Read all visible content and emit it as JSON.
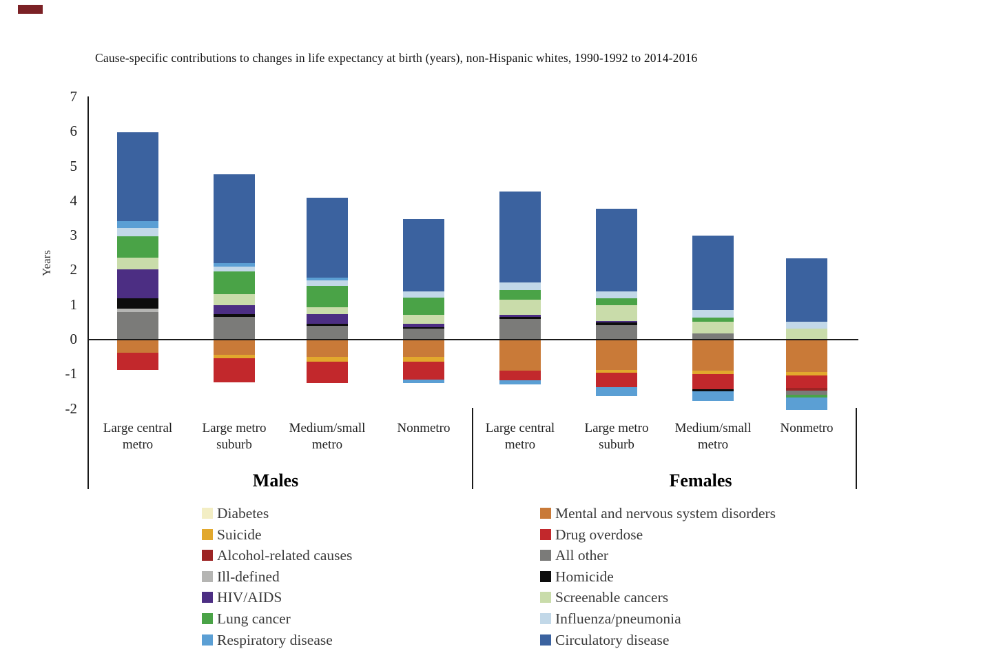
{
  "title": "Cause-specific contributions to changes in life expectancy at birth (years), non-Hispanic whites, 1990-1992 to 2014-2016",
  "chart_data": {
    "type": "bar",
    "subtype": "stacked-bar-with-negatives",
    "title": "Cause-specific contributions to changes in life expectancy at birth (years), non-Hispanic whites, 1990-1992 to 2014-2016",
    "xlabel": "",
    "ylabel": "Years",
    "ylim": [
      -2.3,
      7
    ],
    "yticks": [
      7,
      6,
      5,
      4,
      3,
      2,
      1,
      0,
      -1,
      -2
    ],
    "grid": false,
    "legend_position": "bottom, two columns",
    "groups": [
      {
        "label": "Males"
      },
      {
        "label": "Females"
      }
    ],
    "causes": {
      "diabetes": {
        "label": "Diabetes",
        "color": "#f3eec4"
      },
      "suicide": {
        "label": "Suicide",
        "color": "#e2a82d"
      },
      "alcohol": {
        "label": "Alcohol-related causes",
        "color": "#9c2424"
      },
      "ill_defined": {
        "label": "Ill-defined",
        "color": "#b5b5b3"
      },
      "hiv": {
        "label": "HIV/AIDS",
        "color": "#4c2e83"
      },
      "lung": {
        "label": "Lung cancer",
        "color": "#4aa347"
      },
      "respiratory": {
        "label": "Respiratory disease",
        "color": "#5b9fd4"
      },
      "mental": {
        "label": "Mental and nervous system disorders",
        "color": "#c97a38"
      },
      "overdose": {
        "label": "Drug overdose",
        "color": "#c2282c"
      },
      "all_other": {
        "label": "All other",
        "color": "#7b7b79"
      },
      "homicide": {
        "label": "Homicide",
        "color": "#0d0d0d"
      },
      "screenable": {
        "label": "Screenable cancers",
        "color": "#c9dcaa"
      },
      "influenza": {
        "label": "Influenza/pneumonia",
        "color": "#c2d8e8"
      },
      "circulatory": {
        "label": "Circulatory disease",
        "color": "#3b629f"
      }
    },
    "legend_columns": [
      [
        "diabetes",
        "suicide",
        "alcohol",
        "ill_defined",
        "hiv",
        "lung",
        "respiratory"
      ],
      [
        "mental",
        "overdose",
        "all_other",
        "homicide",
        "screenable",
        "influenza",
        "circulatory"
      ]
    ],
    "categories": [
      "Large central\nmetro",
      "Large metro\nsuburb",
      "Medium/small\nmetro",
      "Nonmetro",
      "Large central\nmetro",
      "Large metro\nsuburb",
      "Medium/small\nmetro",
      "Nonmetro"
    ],
    "bars": [
      {
        "group": "Males",
        "category": "Large central\nmetro",
        "pos": [
          [
            "all_other",
            0.8
          ],
          [
            "ill_defined",
            0.1
          ],
          [
            "homicide",
            0.3
          ],
          [
            "hiv",
            0.82
          ],
          [
            "screenable",
            0.34
          ],
          [
            "lung",
            0.63
          ],
          [
            "influenza",
            0.24
          ],
          [
            "respiratory",
            0.18
          ],
          [
            "circulatory",
            2.58
          ]
        ],
        "neg": [
          [
            "mental",
            -0.38
          ],
          [
            "overdose",
            -0.49
          ]
        ]
      },
      {
        "group": "Males",
        "category": "Large metro\nsuburb",
        "pos": [
          [
            "all_other",
            0.66
          ],
          [
            "homicide",
            0.07
          ],
          [
            "hiv",
            0.26
          ],
          [
            "screenable",
            0.33
          ],
          [
            "lung",
            0.65
          ],
          [
            "influenza",
            0.14
          ],
          [
            "respiratory",
            0.1
          ],
          [
            "circulatory",
            2.56
          ]
        ],
        "neg": [
          [
            "mental",
            -0.44
          ],
          [
            "suicide",
            -0.1
          ],
          [
            "overdose",
            -0.7
          ]
        ]
      },
      {
        "group": "Males",
        "category": "Medium/small\nmetro",
        "pos": [
          [
            "all_other",
            0.4
          ],
          [
            "homicide",
            0.06
          ],
          [
            "hiv",
            0.27
          ],
          [
            "screenable",
            0.21
          ],
          [
            "lung",
            0.61
          ],
          [
            "influenza",
            0.15
          ],
          [
            "respiratory",
            0.08
          ],
          [
            "circulatory",
            2.32
          ]
        ],
        "neg": [
          [
            "mental",
            -0.5
          ],
          [
            "suicide",
            -0.13
          ],
          [
            "overdose",
            -0.62
          ]
        ]
      },
      {
        "group": "Males",
        "category": "Nonmetro",
        "pos": [
          [
            "all_other",
            0.31
          ],
          [
            "homicide",
            0.05
          ],
          [
            "hiv",
            0.09
          ],
          [
            "screenable",
            0.27
          ],
          [
            "lung",
            0.5
          ],
          [
            "influenza",
            0.17
          ],
          [
            "circulatory",
            2.09
          ]
        ],
        "neg": [
          [
            "mental",
            -0.5
          ],
          [
            "suicide",
            -0.13
          ],
          [
            "overdose",
            -0.53
          ],
          [
            "respiratory",
            -0.09
          ]
        ]
      },
      {
        "group": "Females",
        "category": "Large central\nmetro",
        "pos": [
          [
            "all_other",
            0.59
          ],
          [
            "homicide",
            0.07
          ],
          [
            "hiv",
            0.06
          ],
          [
            "screenable",
            0.44
          ],
          [
            "lung",
            0.28
          ],
          [
            "influenza",
            0.22
          ],
          [
            "circulatory",
            2.61
          ]
        ],
        "neg": [
          [
            "mental",
            -0.89
          ],
          [
            "overdose",
            -0.28
          ],
          [
            "respiratory",
            -0.12
          ]
        ]
      },
      {
        "group": "Females",
        "category": "Large metro\nsuburb",
        "pos": [
          [
            "all_other",
            0.42
          ],
          [
            "homicide",
            0.07
          ],
          [
            "hiv",
            0.04
          ],
          [
            "screenable",
            0.46
          ],
          [
            "lung",
            0.2
          ],
          [
            "influenza",
            0.2
          ],
          [
            "circulatory",
            2.39
          ]
        ],
        "neg": [
          [
            "mental",
            -0.87
          ],
          [
            "suicide",
            -0.08
          ],
          [
            "overdose",
            -0.42
          ],
          [
            "respiratory",
            -0.27
          ]
        ]
      },
      {
        "group": "Females",
        "category": "Medium/small\nmetro",
        "pos": [
          [
            "all_other",
            0.18
          ],
          [
            "screenable",
            0.34
          ],
          [
            "lung",
            0.11
          ],
          [
            "influenza",
            0.22
          ],
          [
            "circulatory",
            2.16
          ]
        ],
        "neg": [
          [
            "mental",
            -0.9
          ],
          [
            "suicide",
            -0.1
          ],
          [
            "overdose",
            -0.43
          ],
          [
            "homicide",
            -0.07
          ],
          [
            "respiratory",
            -0.27
          ]
        ]
      },
      {
        "group": "Females",
        "category": "Nonmetro",
        "pos": [
          [
            "screenable",
            0.31
          ],
          [
            "influenza",
            0.2
          ],
          [
            "circulatory",
            1.84
          ]
        ],
        "neg": [
          [
            "mental",
            -0.93
          ],
          [
            "suicide",
            -0.11
          ],
          [
            "overdose",
            -0.35
          ],
          [
            "alcohol",
            -0.08
          ],
          [
            "all_other",
            -0.12
          ],
          [
            "lung",
            -0.08
          ],
          [
            "respiratory",
            -0.35
          ]
        ]
      }
    ]
  }
}
